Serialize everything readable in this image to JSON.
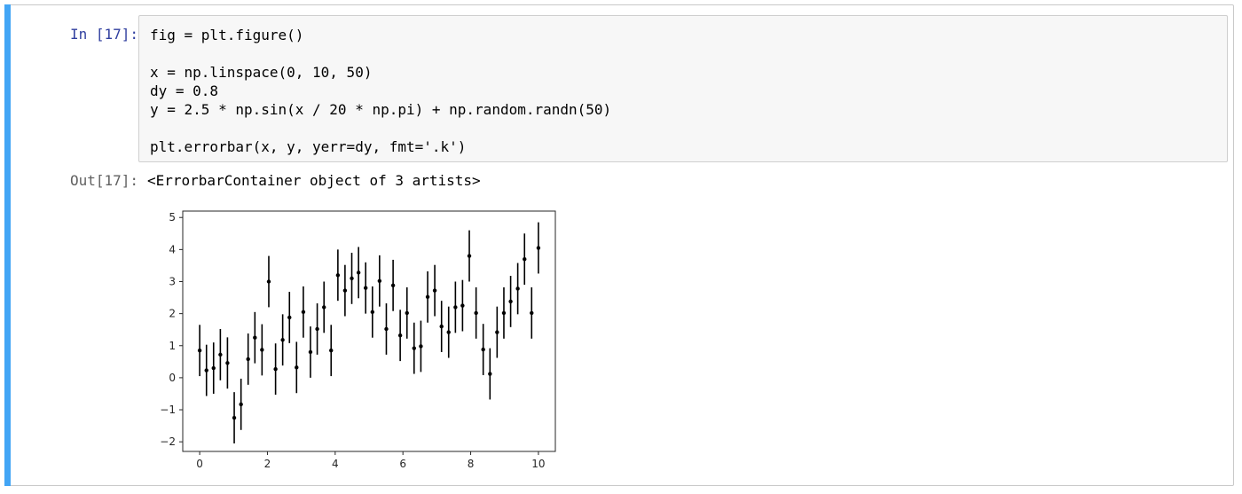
{
  "cell": {
    "in_prompt": "In [17]:",
    "out_prompt": "Out[17]:",
    "code_lines": [
      "fig = plt.figure()",
      "",
      "x = np.linspace(0, 10, 50)",
      "dy = 0.8",
      "y = 2.5 * np.sin(x / 20 * np.pi) + np.random.randn(50)",
      "",
      "plt.errorbar(x, y, yerr=dy, fmt='.k')"
    ],
    "output_text": "<ErrorbarContainer object of 3 artists>",
    "accent_color": "#42a5f5"
  },
  "chart_data": {
    "type": "scatter",
    "marker": "errorbar",
    "color": "#000000",
    "yerr": 0.8,
    "xlim": [
      -0.5,
      10.5
    ],
    "ylim": [
      -2.3,
      5.2
    ],
    "xticks": [
      0,
      2,
      4,
      6,
      8,
      10
    ],
    "yticks": [
      -2,
      -1,
      0,
      1,
      2,
      3,
      4,
      5
    ],
    "xtick_labels": [
      "0",
      "2",
      "4",
      "6",
      "8",
      "10"
    ],
    "ytick_labels": [
      "−2",
      "−1",
      "0",
      "1",
      "2",
      "3",
      "4",
      "5"
    ],
    "grid": false,
    "points": [
      {
        "x": 0.0,
        "y": 0.85
      },
      {
        "x": 0.2,
        "y": 0.23
      },
      {
        "x": 0.41,
        "y": 0.3
      },
      {
        "x": 0.61,
        "y": 0.72
      },
      {
        "x": 0.82,
        "y": 0.46
      },
      {
        "x": 1.02,
        "y": -1.25
      },
      {
        "x": 1.22,
        "y": -0.83
      },
      {
        "x": 1.43,
        "y": 0.58
      },
      {
        "x": 1.63,
        "y": 1.25
      },
      {
        "x": 1.84,
        "y": 0.87
      },
      {
        "x": 2.04,
        "y": 3.0
      },
      {
        "x": 2.24,
        "y": 0.27
      },
      {
        "x": 2.45,
        "y": 1.18
      },
      {
        "x": 2.65,
        "y": 1.88
      },
      {
        "x": 2.86,
        "y": 0.32
      },
      {
        "x": 3.06,
        "y": 2.05
      },
      {
        "x": 3.27,
        "y": 0.8
      },
      {
        "x": 3.47,
        "y": 1.52
      },
      {
        "x": 3.67,
        "y": 2.2
      },
      {
        "x": 3.88,
        "y": 0.85
      },
      {
        "x": 4.08,
        "y": 3.2
      },
      {
        "x": 4.29,
        "y": 2.72
      },
      {
        "x": 4.49,
        "y": 3.1
      },
      {
        "x": 4.69,
        "y": 3.28
      },
      {
        "x": 4.9,
        "y": 2.8
      },
      {
        "x": 5.1,
        "y": 2.05
      },
      {
        "x": 5.31,
        "y": 3.02
      },
      {
        "x": 5.51,
        "y": 1.52
      },
      {
        "x": 5.71,
        "y": 2.88
      },
      {
        "x": 5.92,
        "y": 1.32
      },
      {
        "x": 6.12,
        "y": 2.02
      },
      {
        "x": 6.33,
        "y": 0.92
      },
      {
        "x": 6.53,
        "y": 0.98
      },
      {
        "x": 6.73,
        "y": 2.52
      },
      {
        "x": 6.94,
        "y": 2.72
      },
      {
        "x": 7.14,
        "y": 1.6
      },
      {
        "x": 7.35,
        "y": 1.42
      },
      {
        "x": 7.55,
        "y": 2.2
      },
      {
        "x": 7.76,
        "y": 2.25
      },
      {
        "x": 7.96,
        "y": 3.8
      },
      {
        "x": 8.16,
        "y": 2.02
      },
      {
        "x": 8.37,
        "y": 0.88
      },
      {
        "x": 8.57,
        "y": 0.12
      },
      {
        "x": 8.78,
        "y": 1.42
      },
      {
        "x": 8.98,
        "y": 2.02
      },
      {
        "x": 9.18,
        "y": 2.38
      },
      {
        "x": 9.39,
        "y": 2.78
      },
      {
        "x": 9.59,
        "y": 3.7
      },
      {
        "x": 9.8,
        "y": 2.02
      },
      {
        "x": 10.0,
        "y": 4.05
      }
    ]
  }
}
